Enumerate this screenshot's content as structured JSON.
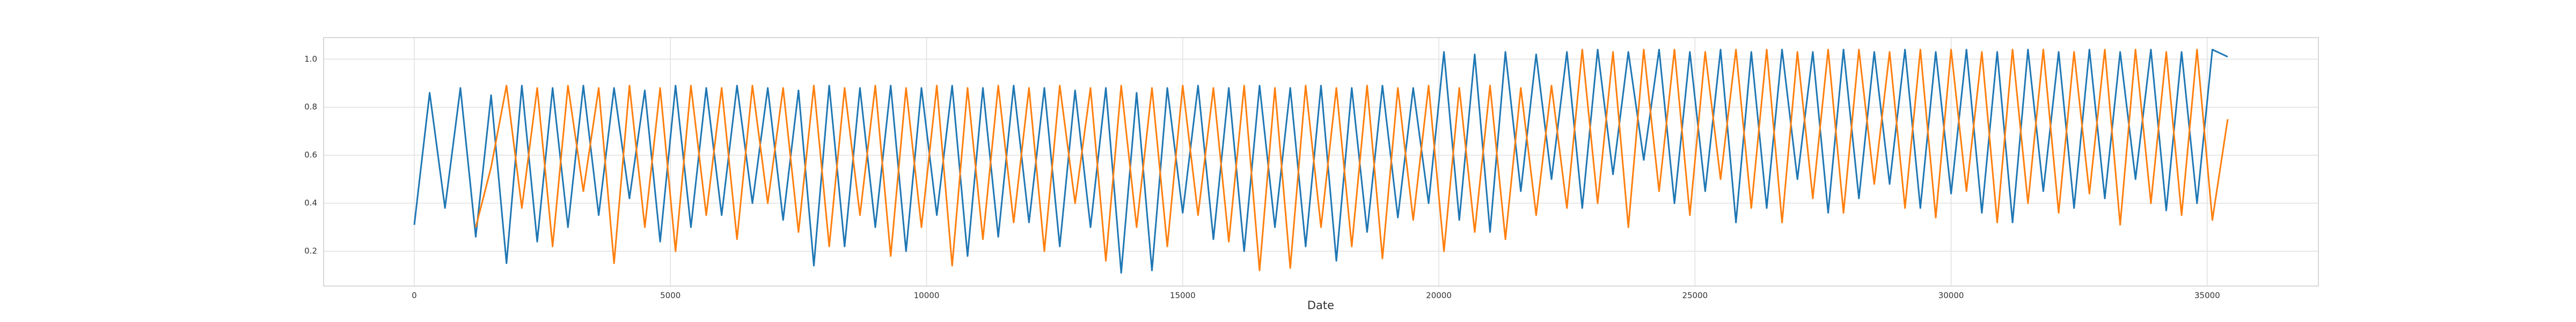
{
  "chart_data": {
    "type": "line",
    "x_label": "Date",
    "x": [
      0,
      300,
      600,
      900,
      1200,
      1500,
      1800,
      2100,
      2400,
      2700,
      3000,
      3300,
      3600,
      3900,
      4200,
      4500,
      4800,
      5100,
      5400,
      5700,
      6000,
      6300,
      6600,
      6900,
      7200,
      7500,
      7800,
      8100,
      8400,
      8700,
      9000,
      9300,
      9600,
      9900,
      10200,
      10500,
      10800,
      11100,
      11400,
      11700,
      12000,
      12300,
      12600,
      12900,
      13200,
      13500,
      13800,
      14100,
      14400,
      14700,
      15000,
      15300,
      15600,
      15900,
      16200,
      16500,
      16800,
      17100,
      17400,
      17700,
      18000,
      18300,
      18600,
      18900,
      19200,
      19500,
      19800,
      20100,
      20400,
      20700,
      21000,
      21300,
      21600,
      21900,
      22200,
      22500,
      22800,
      23100,
      23400,
      23700,
      24000,
      24300,
      24600,
      24900,
      25200,
      25500,
      25800,
      26100,
      26400,
      26700,
      27000,
      27300,
      27600,
      27900,
      28200,
      28500,
      28800,
      29100,
      29400,
      29700,
      30000,
      30300,
      30600,
      30900,
      31200,
      31500,
      31800,
      32100,
      32400,
      32700,
      33000,
      33300,
      33600,
      33900,
      34200,
      34500,
      34800,
      35100,
      35400
    ],
    "series": [
      {
        "color": "#1f77b4",
        "values": [
          0.31,
          0.86,
          0.38,
          0.88,
          0.26,
          0.85,
          0.15,
          0.89,
          0.24,
          0.88,
          0.3,
          0.89,
          0.35,
          0.88,
          0.42,
          0.87,
          0.24,
          0.89,
          0.3,
          0.88,
          0.35,
          0.89,
          0.4,
          0.88,
          0.33,
          0.87,
          0.14,
          0.89,
          0.22,
          0.88,
          0.3,
          0.89,
          0.2,
          0.88,
          0.35,
          0.89,
          0.18,
          0.88,
          0.26,
          0.89,
          0.32,
          0.88,
          0.22,
          0.87,
          0.3,
          0.88,
          0.11,
          0.86,
          0.12,
          0.88,
          0.36,
          0.89,
          0.25,
          0.88,
          0.2,
          0.89,
          0.3,
          0.88,
          0.22,
          0.89,
          0.16,
          0.88,
          0.28,
          0.89,
          0.34,
          0.88,
          0.4,
          1.03,
          0.33,
          1.02,
          0.28,
          1.03,
          0.45,
          1.02,
          0.5,
          1.03,
          0.38,
          1.04,
          0.52,
          1.03,
          0.58,
          1.04,
          0.4,
          1.03,
          0.45,
          1.04,
          0.32,
          1.03,
          0.38,
          1.04,
          0.5,
          1.03,
          0.36,
          1.04,
          0.42,
          1.03,
          0.48,
          1.04,
          0.38,
          1.03,
          0.44,
          1.04,
          0.36,
          1.03,
          0.32,
          1.04,
          0.45,
          1.03,
          0.38,
          1.04,
          0.42,
          1.03,
          0.5,
          1.04,
          0.37,
          1.03,
          0.4,
          1.04,
          1.01
        ]
      },
      {
        "color": "#ff7f0e",
        "values": [
          null,
          null,
          null,
          null,
          0.3,
          0.55,
          0.89,
          0.38,
          0.88,
          0.22,
          0.89,
          0.45,
          0.88,
          0.15,
          0.89,
          0.3,
          0.88,
          0.2,
          0.89,
          0.35,
          0.88,
          0.25,
          0.89,
          0.4,
          0.88,
          0.28,
          0.89,
          0.22,
          0.88,
          0.35,
          0.89,
          0.18,
          0.88,
          0.3,
          0.89,
          0.14,
          0.88,
          0.25,
          0.89,
          0.32,
          0.88,
          0.2,
          0.89,
          0.4,
          0.88,
          0.16,
          0.89,
          0.3,
          0.88,
          0.22,
          0.89,
          0.35,
          0.88,
          0.24,
          0.89,
          0.12,
          0.88,
          0.13,
          0.89,
          0.3,
          0.88,
          0.22,
          0.89,
          0.17,
          0.88,
          0.33,
          0.89,
          0.2,
          0.88,
          0.28,
          0.89,
          0.25,
          0.88,
          0.35,
          0.89,
          0.38,
          1.04,
          0.4,
          1.03,
          0.3,
          1.04,
          0.45,
          1.04,
          0.35,
          1.03,
          0.5,
          1.04,
          0.38,
          1.04,
          0.32,
          1.03,
          0.42,
          1.04,
          0.36,
          1.04,
          0.48,
          1.03,
          0.38,
          1.04,
          0.34,
          1.04,
          0.45,
          1.03,
          0.32,
          1.04,
          0.4,
          1.04,
          0.36,
          1.03,
          0.44,
          1.04,
          0.31,
          1.04,
          0.4,
          1.03,
          0.35,
          1.04,
          0.33,
          0.75
        ]
      }
    ],
    "xlim": [
      -1770,
      37170
    ],
    "ylim": [
      0.055,
      1.09
    ],
    "xticks": [
      0,
      5000,
      10000,
      15000,
      20000,
      25000,
      30000,
      35000
    ],
    "yticks": [
      0.2,
      0.4,
      0.6,
      0.8,
      {
        "value": 1.0,
        "label": "1.0"
      }
    ],
    "grid": true
  }
}
